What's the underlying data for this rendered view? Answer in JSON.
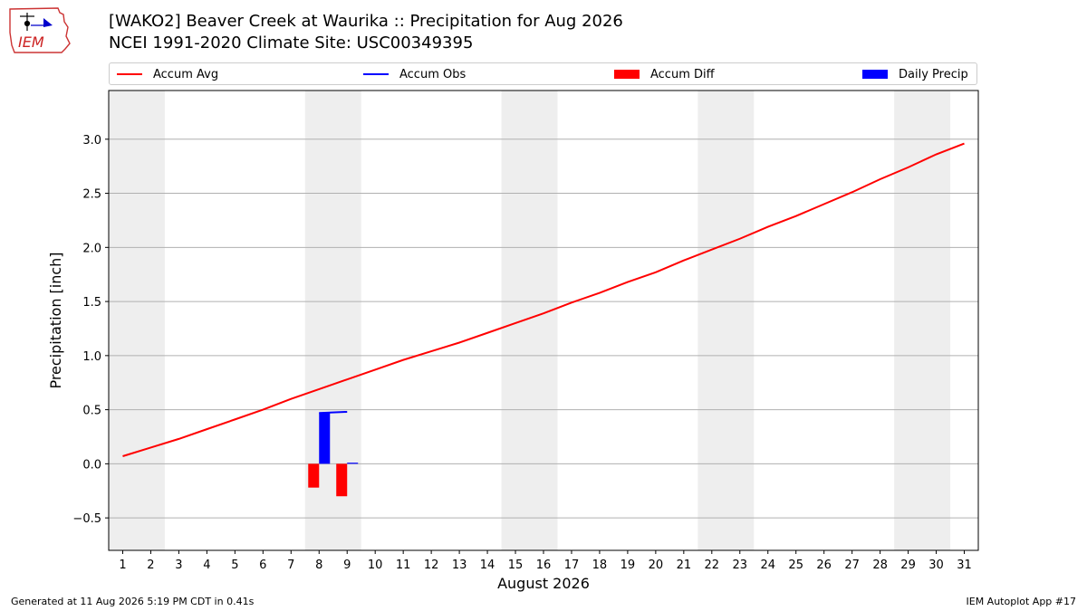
{
  "header": {
    "logo_text": "IEM",
    "title_line1": "[WAKO2] Beaver Creek at Waurika :: Precipitation for Aug 2026",
    "title_line2": "NCEI 1991-2020 Climate Site: USC00349395"
  },
  "legend": {
    "items": [
      {
        "label": "Accum Avg",
        "kind": "line",
        "color": "#ff0000"
      },
      {
        "label": "Accum Obs",
        "kind": "line",
        "color": "#0000ff"
      },
      {
        "label": "Accum Diff",
        "kind": "patch",
        "color": "#ff0000"
      },
      {
        "label": "Daily Precip",
        "kind": "patch",
        "color": "#0000ff"
      }
    ]
  },
  "footer": {
    "left": "Generated at 11 Aug 2026 5:19 PM CDT in 0.41s",
    "right": "IEM Autoplot App #17"
  },
  "chart_data": {
    "type": "line",
    "title": "[WAKO2] Beaver Creek at Waurika :: Precipitation for Aug 2026",
    "subtitle": "NCEI 1991-2020 Climate Site: USC00349395",
    "xlabel": "August 2026",
    "ylabel": "Precipitation [inch]",
    "x": [
      1,
      2,
      3,
      4,
      5,
      6,
      7,
      8,
      9,
      10,
      11,
      12,
      13,
      14,
      15,
      16,
      17,
      18,
      19,
      20,
      21,
      22,
      23,
      24,
      25,
      26,
      27,
      28,
      29,
      30,
      31
    ],
    "x_tick_labels": [
      "1",
      "2",
      "3",
      "4",
      "5",
      "6",
      "7",
      "8",
      "9",
      "10",
      "11",
      "12",
      "13",
      "14",
      "15",
      "16",
      "17",
      "18",
      "19",
      "20",
      "21",
      "22",
      "23",
      "24",
      "25",
      "26",
      "27",
      "28",
      "29",
      "30",
      "31"
    ],
    "xlim": [
      0.5,
      31.5
    ],
    "ylim": [
      -0.8,
      3.45
    ],
    "y_ticks": [
      -0.5,
      0.0,
      0.5,
      1.0,
      1.5,
      2.0,
      2.5,
      3.0
    ],
    "y_tick_labels": [
      "−0.5",
      "0.0",
      "0.5",
      "1.0",
      "1.5",
      "2.0",
      "2.5",
      "3.0"
    ],
    "grid": "horizontal",
    "weekend_shading": [
      [
        0.5,
        2.5
      ],
      [
        7.5,
        9.5
      ],
      [
        14.5,
        16.5
      ],
      [
        21.5,
        23.5
      ],
      [
        28.5,
        30.5
      ]
    ],
    "series": [
      {
        "name": "Accum Avg",
        "type": "line",
        "color": "#ff0000",
        "x": [
          1,
          2,
          3,
          4,
          5,
          6,
          7,
          8,
          9,
          10,
          11,
          12,
          13,
          14,
          15,
          16,
          17,
          18,
          19,
          20,
          21,
          22,
          23,
          24,
          25,
          26,
          27,
          28,
          29,
          30,
          31
        ],
        "values": [
          0.07,
          0.15,
          0.23,
          0.32,
          0.41,
          0.5,
          0.6,
          0.69,
          0.78,
          0.87,
          0.96,
          1.04,
          1.12,
          1.21,
          1.3,
          1.39,
          1.49,
          1.58,
          1.68,
          1.77,
          1.88,
          1.98,
          2.08,
          2.19,
          2.29,
          2.4,
          2.51,
          2.63,
          2.74,
          2.86,
          2.96
        ]
      },
      {
        "name": "Accum Obs",
        "type": "line",
        "color": "#0000ff",
        "x": [
          8,
          9
        ],
        "values": [
          0.47,
          0.48
        ]
      },
      {
        "name": "Accum Diff",
        "type": "bar",
        "color": "#ff0000",
        "x": [
          8,
          9
        ],
        "values": [
          -0.22,
          -0.3
        ]
      },
      {
        "name": "Daily Precip",
        "type": "bar",
        "color": "#0000ff",
        "x": [
          8,
          9
        ],
        "values": [
          0.47,
          0.01
        ]
      }
    ]
  }
}
